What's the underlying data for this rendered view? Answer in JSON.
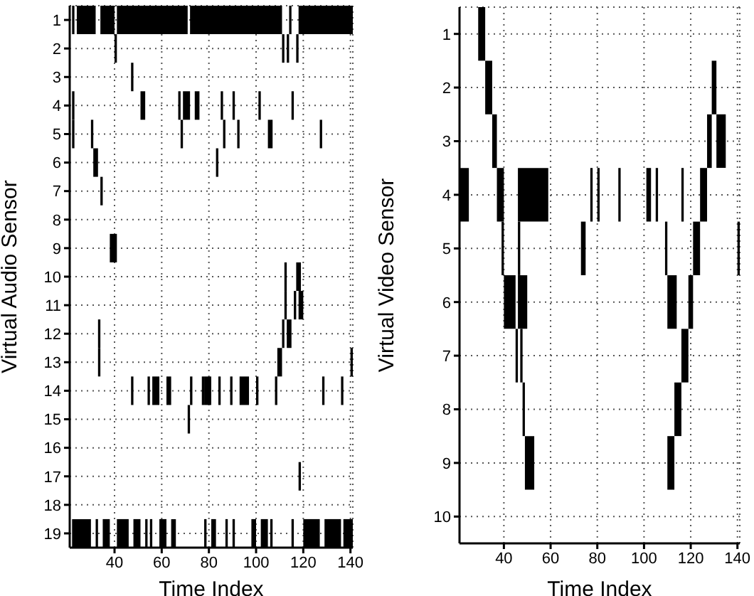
{
  "chart_data": [
    {
      "type": "bar",
      "orientation": "horizontal",
      "xlabel": "Time Index",
      "ylabel": "Virtual Audio Sensor",
      "grid": true,
      "xlim": [
        21,
        141
      ],
      "xticks": [
        40,
        60,
        80,
        100,
        120,
        140
      ],
      "categories": [
        "1",
        "2",
        "3",
        "4",
        "5",
        "6",
        "7",
        "8",
        "9",
        "10",
        "11",
        "12",
        "13",
        "14",
        "15",
        "16",
        "17",
        "18",
        "19"
      ],
      "series": [
        {
          "color": "#000000",
          "base": [
            22,
            40,
            47,
            22,
            22,
            31,
            34,
            null,
            38,
            112,
            112,
            33,
            33,
            47,
            71,
            null,
            118,
            null,
            22
          ],
          "values": [
            1,
            1,
            1,
            1,
            1,
            2,
            1,
            null,
            3,
            1,
            1,
            1,
            1,
            1,
            1,
            null,
            1,
            null,
            8
          ]
        },
        {
          "color": "#000000",
          "base": [
            24,
            111,
            null,
            51,
            30,
            83,
            null,
            null,
            null,
            117,
            116,
            111,
            109,
            54,
            null,
            null,
            null,
            null,
            32
          ],
          "values": [
            8,
            1,
            null,
            2,
            1,
            1,
            null,
            null,
            null,
            2,
            1,
            1,
            2,
            1,
            null,
            null,
            null,
            null,
            1
          ]
        },
        {
          "color": "#000000",
          "base": [
            34,
            113,
            null,
            67,
            68,
            null,
            null,
            null,
            null,
            null,
            118,
            113,
            140,
            56,
            null,
            null,
            null,
            null,
            35
          ],
          "values": [
            6,
            1,
            null,
            1,
            1,
            null,
            null,
            null,
            null,
            null,
            2,
            2,
            1,
            3,
            null,
            null,
            null,
            null,
            3
          ]
        },
        {
          "color": "#000000",
          "base": [
            41,
            117,
            null,
            69,
            86,
            null,
            null,
            null,
            null,
            null,
            null,
            null,
            null,
            62,
            null,
            null,
            null,
            null,
            41
          ],
          "values": [
            30,
            1,
            null,
            3,
            1,
            null,
            null,
            null,
            null,
            null,
            null,
            null,
            null,
            2,
            null,
            null,
            null,
            null,
            5
          ]
        },
        {
          "color": "#000000",
          "base": [
            72,
            null,
            null,
            74,
            92,
            null,
            null,
            null,
            null,
            null,
            null,
            null,
            null,
            72,
            null,
            null,
            null,
            null,
            48
          ],
          "values": [
            39,
            null,
            null,
            2,
            1,
            null,
            null,
            null,
            null,
            null,
            null,
            null,
            null,
            1,
            null,
            null,
            null,
            null,
            3
          ]
        },
        {
          "color": "#000000",
          "base": [
            114,
            null,
            null,
            85,
            105,
            null,
            null,
            null,
            null,
            null,
            null,
            null,
            null,
            77,
            null,
            null,
            null,
            null,
            53
          ],
          "values": [
            1,
            null,
            null,
            1,
            2,
            null,
            null,
            null,
            null,
            null,
            null,
            null,
            null,
            1,
            null,
            null,
            null,
            null,
            1
          ]
        },
        {
          "color": "#000000",
          "base": [
            118,
            null,
            null,
            90,
            127,
            null,
            null,
            null,
            null,
            null,
            null,
            null,
            null,
            78,
            null,
            null,
            null,
            null,
            55
          ],
          "values": [
            23,
            null,
            null,
            1,
            1,
            null,
            null,
            null,
            null,
            null,
            null,
            null,
            null,
            3,
            null,
            null,
            null,
            null,
            1
          ]
        },
        {
          "color": "#000000",
          "base": [
            null,
            null,
            null,
            101,
            null,
            null,
            null,
            null,
            null,
            null,
            null,
            null,
            null,
            84,
            null,
            null,
            null,
            null,
            59
          ],
          "values": [
            null,
            null,
            null,
            1,
            null,
            null,
            null,
            null,
            null,
            null,
            null,
            null,
            null,
            1,
            null,
            null,
            null,
            null,
            3
          ]
        },
        {
          "color": "#000000",
          "base": [
            null,
            null,
            null,
            115,
            null,
            null,
            null,
            null,
            null,
            null,
            null,
            null,
            null,
            89,
            null,
            null,
            null,
            null,
            64
          ],
          "values": [
            null,
            null,
            null,
            1,
            null,
            null,
            null,
            null,
            null,
            null,
            null,
            null,
            null,
            1,
            null,
            null,
            null,
            null,
            2
          ]
        },
        {
          "color": "#000000",
          "base": [
            null,
            null,
            null,
            null,
            null,
            null,
            null,
            null,
            null,
            null,
            null,
            null,
            null,
            93,
            null,
            null,
            null,
            null,
            78
          ],
          "values": [
            null,
            null,
            null,
            null,
            null,
            null,
            null,
            null,
            null,
            null,
            null,
            null,
            null,
            4,
            null,
            null,
            null,
            null,
            1
          ]
        },
        {
          "color": "#000000",
          "base": [
            null,
            null,
            null,
            null,
            null,
            null,
            null,
            null,
            null,
            null,
            null,
            null,
            null,
            100,
            null,
            null,
            null,
            null,
            81
          ],
          "values": [
            null,
            null,
            null,
            null,
            null,
            null,
            null,
            null,
            null,
            null,
            null,
            null,
            null,
            1,
            null,
            null,
            null,
            null,
            2
          ]
        },
        {
          "color": "#000000",
          "base": [
            null,
            null,
            null,
            null,
            null,
            null,
            null,
            null,
            null,
            null,
            null,
            null,
            null,
            108,
            null,
            null,
            null,
            null,
            87
          ],
          "values": [
            null,
            null,
            null,
            null,
            null,
            null,
            null,
            null,
            null,
            null,
            null,
            null,
            null,
            1,
            null,
            null,
            null,
            null,
            1
          ]
        },
        {
          "color": "#000000",
          "base": [
            null,
            null,
            null,
            null,
            null,
            null,
            null,
            null,
            null,
            null,
            null,
            null,
            null,
            128,
            null,
            null,
            null,
            null,
            90
          ],
          "values": [
            null,
            null,
            null,
            null,
            null,
            null,
            null,
            null,
            null,
            null,
            null,
            null,
            null,
            1,
            null,
            null,
            null,
            null,
            1
          ]
        },
        {
          "color": "#000000",
          "base": [
            null,
            null,
            null,
            null,
            null,
            null,
            null,
            null,
            null,
            null,
            null,
            null,
            null,
            136,
            null,
            null,
            null,
            null,
            98
          ],
          "values": [
            null,
            null,
            null,
            null,
            null,
            null,
            null,
            null,
            null,
            null,
            null,
            null,
            null,
            1,
            null,
            null,
            null,
            null,
            2
          ]
        },
        {
          "color": "#000000",
          "base": [
            null,
            null,
            null,
            null,
            null,
            null,
            null,
            null,
            null,
            null,
            null,
            null,
            null,
            null,
            null,
            null,
            null,
            null,
            102
          ],
          "values": [
            null,
            null,
            null,
            null,
            null,
            null,
            null,
            null,
            null,
            null,
            null,
            null,
            null,
            null,
            null,
            null,
            null,
            null,
            3
          ]
        },
        {
          "color": "#000000",
          "base": [
            null,
            null,
            null,
            null,
            null,
            null,
            null,
            null,
            null,
            null,
            null,
            null,
            null,
            null,
            null,
            null,
            null,
            null,
            106
          ],
          "values": [
            null,
            null,
            null,
            null,
            null,
            null,
            null,
            null,
            null,
            null,
            null,
            null,
            null,
            null,
            null,
            null,
            null,
            null,
            1
          ]
        },
        {
          "color": "#000000",
          "base": [
            null,
            null,
            null,
            null,
            null,
            null,
            null,
            null,
            null,
            null,
            null,
            null,
            null,
            null,
            null,
            null,
            null,
            null,
            115
          ],
          "values": [
            null,
            null,
            null,
            null,
            null,
            null,
            null,
            null,
            null,
            null,
            null,
            null,
            null,
            null,
            null,
            null,
            null,
            null,
            1
          ]
        },
        {
          "color": "#000000",
          "base": [
            null,
            null,
            null,
            null,
            null,
            null,
            null,
            null,
            null,
            null,
            null,
            null,
            null,
            null,
            null,
            null,
            null,
            null,
            120
          ],
          "values": [
            null,
            null,
            null,
            null,
            null,
            null,
            null,
            null,
            null,
            null,
            null,
            null,
            null,
            null,
            null,
            null,
            null,
            null,
            7
          ]
        },
        {
          "color": "#000000",
          "base": [
            null,
            null,
            null,
            null,
            null,
            null,
            null,
            null,
            null,
            null,
            null,
            null,
            null,
            null,
            null,
            null,
            null,
            null,
            129
          ],
          "values": [
            null,
            null,
            null,
            null,
            null,
            null,
            null,
            null,
            null,
            null,
            null,
            null,
            null,
            null,
            null,
            null,
            null,
            null,
            7
          ]
        },
        {
          "color": "#000000",
          "base": [
            null,
            null,
            null,
            null,
            null,
            null,
            null,
            null,
            null,
            null,
            null,
            null,
            null,
            null,
            null,
            null,
            null,
            null,
            137
          ],
          "values": [
            null,
            null,
            null,
            null,
            null,
            null,
            null,
            null,
            null,
            null,
            null,
            null,
            null,
            null,
            null,
            null,
            null,
            null,
            4
          ]
        }
      ]
    },
    {
      "type": "bar",
      "orientation": "horizontal",
      "xlabel": "Time Index",
      "ylabel": "Virtual Video Sensor",
      "grid": true,
      "xlim": [
        21,
        141
      ],
      "xticks": [
        40,
        60,
        80,
        100,
        120,
        140
      ],
      "categories": [
        "1",
        "2",
        "3",
        "4",
        "5",
        "6",
        "7",
        "8",
        "9",
        "10"
      ],
      "series": [
        {
          "color": "#000000",
          "base": [
            29,
            32,
            35,
            21,
            39,
            40,
            45,
            48,
            49,
            null
          ],
          "values": [
            3,
            3,
            2,
            4,
            1,
            5,
            1,
            1,
            4,
            null
          ]
        },
        {
          "color": "#000000",
          "base": [
            null,
            129,
            127,
            37,
            46,
            46,
            47,
            113,
            110,
            null
          ],
          "values": [
            null,
            2,
            2,
            3,
            1,
            4,
            1,
            3,
            3,
            null
          ]
        },
        {
          "color": "#000000",
          "base": [
            null,
            null,
            131,
            46,
            73,
            110,
            116,
            null,
            null,
            null
          ],
          "values": [
            null,
            null,
            4,
            13,
            2,
            4,
            3,
            null,
            null,
            null
          ]
        },
        {
          "color": "#000000",
          "base": [
            null,
            null,
            null,
            77,
            109,
            119,
            null,
            null,
            null,
            null
          ],
          "values": [
            null,
            null,
            null,
            1,
            1,
            2,
            null,
            null,
            null,
            null
          ]
        },
        {
          "color": "#000000",
          "base": [
            null,
            null,
            null,
            80,
            121,
            null,
            null,
            null,
            null,
            null
          ],
          "values": [
            null,
            null,
            null,
            1,
            3,
            null,
            null,
            null,
            null,
            null
          ]
        },
        {
          "color": "#000000",
          "base": [
            null,
            null,
            null,
            89,
            140,
            null,
            null,
            null,
            null,
            null
          ],
          "values": [
            null,
            null,
            null,
            1,
            1,
            null,
            null,
            null,
            null,
            null
          ]
        },
        {
          "color": "#000000",
          "base": [
            null,
            null,
            null,
            101,
            null,
            null,
            null,
            null,
            null,
            null
          ],
          "values": [
            null,
            null,
            null,
            2,
            null,
            null,
            null,
            null,
            null,
            null
          ]
        },
        {
          "color": "#000000",
          "base": [
            null,
            null,
            null,
            105,
            null,
            null,
            null,
            null,
            null,
            null
          ],
          "values": [
            null,
            null,
            null,
            1,
            null,
            null,
            null,
            null,
            null,
            null
          ]
        },
        {
          "color": "#000000",
          "base": [
            null,
            null,
            null,
            116,
            null,
            null,
            null,
            null,
            null,
            null
          ],
          "values": [
            null,
            null,
            null,
            1,
            null,
            null,
            null,
            null,
            null,
            null
          ]
        },
        {
          "color": "#000000",
          "base": [
            null,
            null,
            null,
            124,
            null,
            null,
            null,
            null,
            null,
            null
          ],
          "values": [
            null,
            null,
            null,
            3,
            null,
            null,
            null,
            null,
            null,
            null
          ]
        }
      ]
    }
  ]
}
